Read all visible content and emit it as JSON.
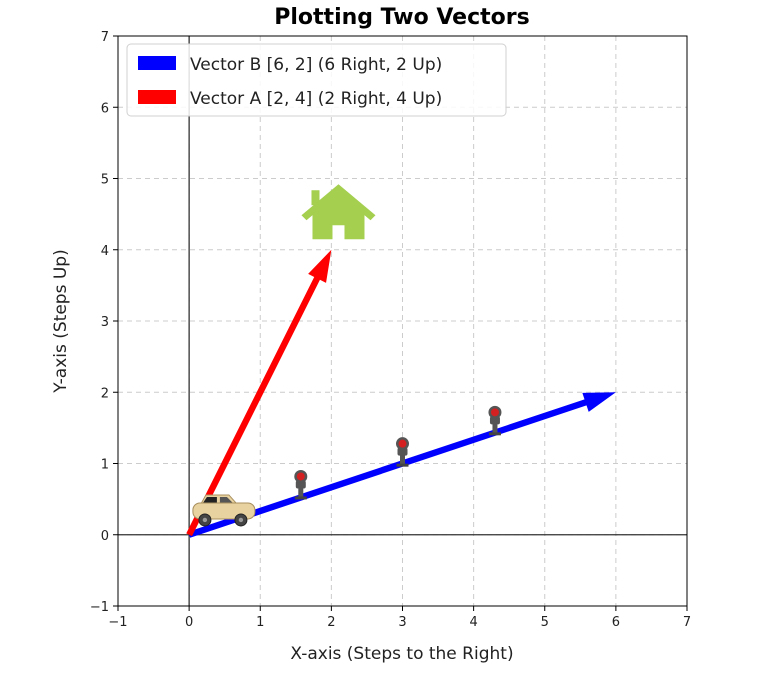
{
  "chart_data": {
    "type": "vector",
    "title": "Plotting Two Vectors",
    "xlabel": "X-axis (Steps to the Right)",
    "ylabel": "Y-axis (Steps Up)",
    "xlim": [
      -1,
      7
    ],
    "ylim": [
      -1,
      7
    ],
    "xticks": [
      -1,
      0,
      1,
      2,
      3,
      4,
      5,
      6,
      7
    ],
    "yticks": [
      -1,
      0,
      1,
      2,
      3,
      4,
      5,
      6,
      7
    ],
    "grid": true,
    "legend_position": "top-left",
    "series": [
      {
        "name": "Vector B [6, 2] (6 Right, 2 Up)",
        "start": [
          0,
          0
        ],
        "end": [
          6,
          2
        ],
        "color": "#0000ff"
      },
      {
        "name": "Vector A [2, 4] (2 Right, 4 Up)",
        "start": [
          0,
          0
        ],
        "end": [
          2,
          4
        ],
        "color": "#ff0000"
      }
    ],
    "markers": [
      {
        "icon": "house-icon",
        "x": 2.1,
        "y": 4.4,
        "color": "#a4cf4f"
      },
      {
        "icon": "car-icon",
        "x": 0.25,
        "y": 0.25,
        "color": "#e8d2a0"
      },
      {
        "icon": "traffic-light-icon",
        "x": 1.57,
        "y": 0.72
      },
      {
        "icon": "traffic-light-icon",
        "x": 3.0,
        "y": 1.18
      },
      {
        "icon": "traffic-light-icon",
        "x": 4.3,
        "y": 1.62
      }
    ]
  }
}
